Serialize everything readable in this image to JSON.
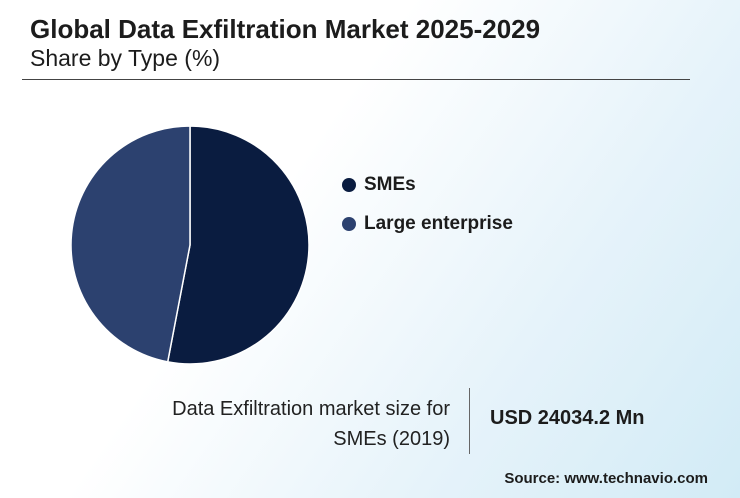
{
  "chart_data": {
    "type": "pie",
    "title": "Global Data Exfiltration Market 2025-2029",
    "subtitle": "Share by Type (%)",
    "categories": [
      "SMEs",
      "Large enterprise"
    ],
    "values": [
      53,
      47
    ],
    "colors": [
      "#0a1c40",
      "#2c416f"
    ],
    "legend_position": "right"
  },
  "callout": {
    "label": "Data Exfiltration market size for SMEs (2019)",
    "value": "USD 24034.2 Mn"
  },
  "source": "Source: www.technavio.com"
}
